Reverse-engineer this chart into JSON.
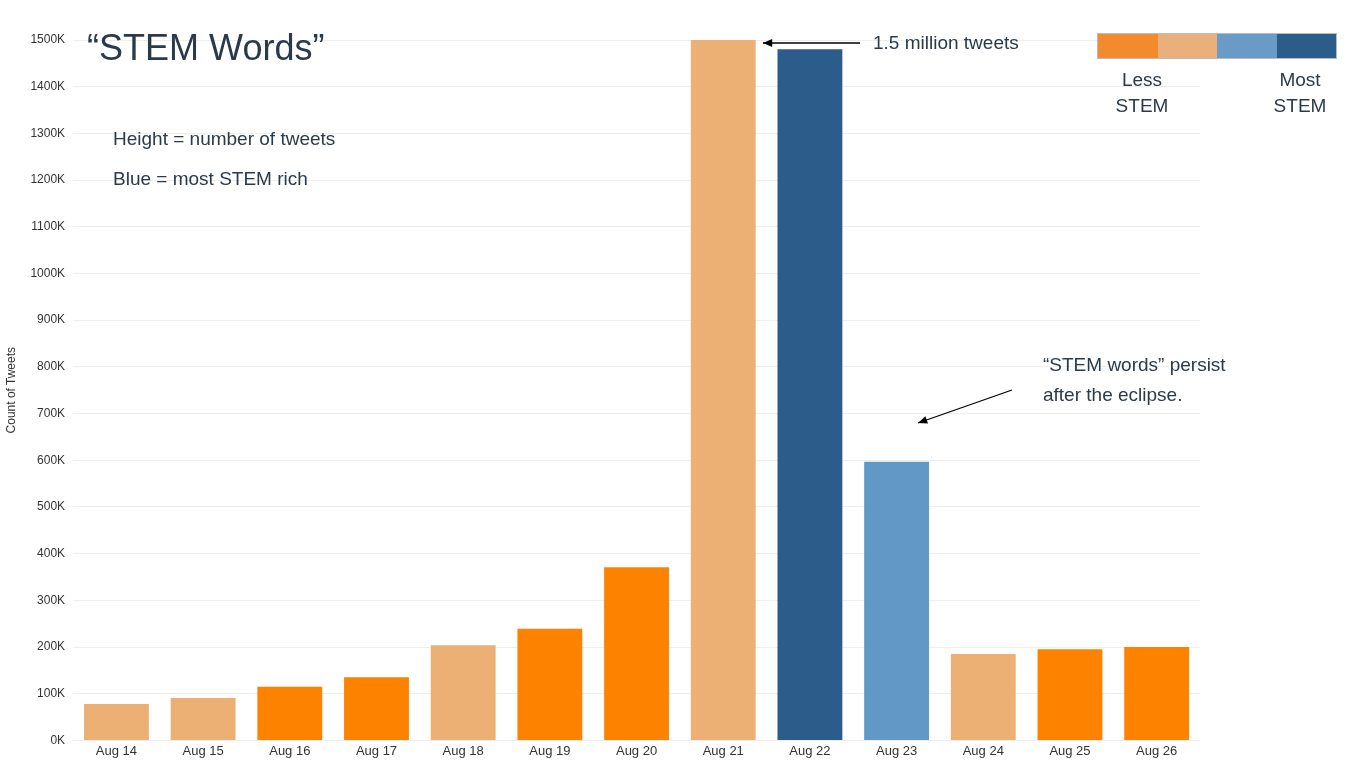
{
  "chart_data": {
    "type": "bar",
    "title": "“STEM Words”",
    "ylabel": "Count of Tweets",
    "categories": [
      "Aug 14",
      "Aug 15",
      "Aug 16",
      "Aug 17",
      "Aug 18",
      "Aug 19",
      "Aug 20",
      "Aug 21",
      "Aug 22",
      "Aug 23",
      "Aug 24",
      "Aug 25",
      "Aug 26"
    ],
    "values": [
      78,
      91,
      115,
      135,
      204,
      239,
      371,
      1500,
      1480,
      597,
      185,
      195,
      200
    ],
    "colors": [
      "#ecb074",
      "#ecb074",
      "#fc8200",
      "#fc8200",
      "#ecb074",
      "#fc8200",
      "#fc8200",
      "#ecb074",
      "#2c5c8a",
      "#6298c6",
      "#ecb074",
      "#fc8200",
      "#fc8200"
    ],
    "ylim": [
      0,
      1500
    ],
    "yticks": [
      {
        "value": 0,
        "label": "0K"
      },
      {
        "value": 100,
        "label": "100K"
      },
      {
        "value": 200,
        "label": "200K"
      },
      {
        "value": 300,
        "label": "300K"
      },
      {
        "value": 400,
        "label": "400K"
      },
      {
        "value": 500,
        "label": "500K"
      },
      {
        "value": 600,
        "label": "600K"
      },
      {
        "value": 700,
        "label": "700K"
      },
      {
        "value": 800,
        "label": "800K"
      },
      {
        "value": 900,
        "label": "900K"
      },
      {
        "value": 1000,
        "label": "1000K"
      },
      {
        "value": 1100,
        "label": "1100K"
      },
      {
        "value": 1200,
        "label": "1200K"
      },
      {
        "value": 1300,
        "label": "1300K"
      },
      {
        "value": 1400,
        "label": "1400K"
      },
      {
        "value": 1500,
        "label": "1500K"
      }
    ],
    "grid": "y",
    "legend": false,
    "annotations": [
      "Height = number of tweets",
      "Blue = most STEM rich",
      "Less STEM",
      "Most STEM",
      "1.5 million tweets",
      "“STEM words” persist after the eclipse."
    ]
  }
}
